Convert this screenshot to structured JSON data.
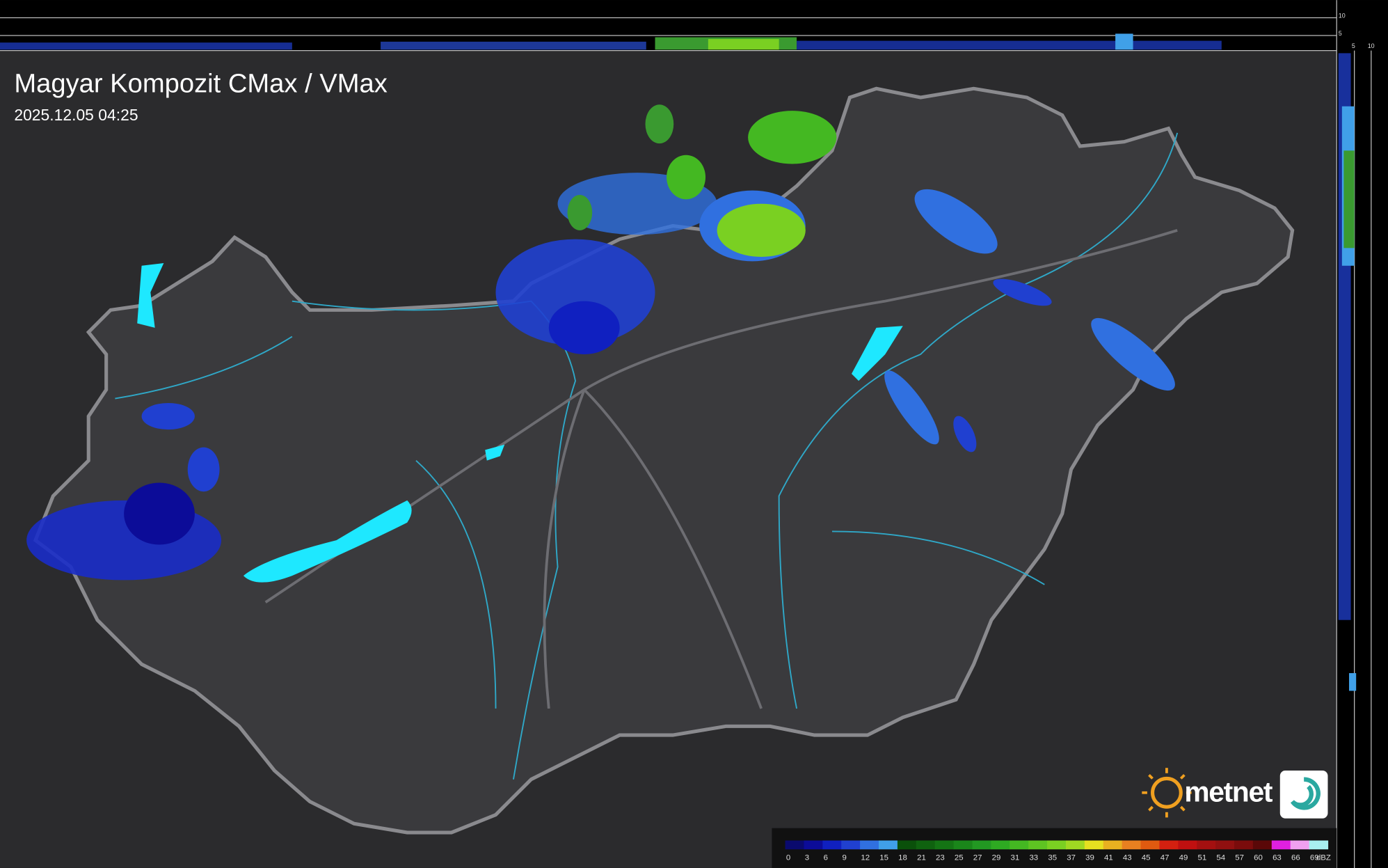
{
  "header": {
    "title": "Magyar Kompozit CMax / VMax",
    "timestamp": "2025.12.05 04:25"
  },
  "profile_axes": {
    "top_ticks": [
      "10",
      "5"
    ],
    "side_ticks": [
      "5",
      "10"
    ]
  },
  "legend": {
    "unit": "dBZ",
    "levels": [
      {
        "value": 0,
        "color": "#0a0a6e"
      },
      {
        "value": 3,
        "color": "#0c0c98"
      },
      {
        "value": 6,
        "color": "#1020c0"
      },
      {
        "value": 9,
        "color": "#2040d0"
      },
      {
        "value": 12,
        "color": "#3070e0"
      },
      {
        "value": 15,
        "color": "#40a0e8"
      },
      {
        "value": 18,
        "color": "#0a500a"
      },
      {
        "value": 21,
        "color": "#0f620f"
      },
      {
        "value": 23,
        "color": "#147414"
      },
      {
        "value": 25,
        "color": "#1a861a"
      },
      {
        "value": 27,
        "color": "#229822"
      },
      {
        "value": 29,
        "color": "#2eaa22"
      },
      {
        "value": 31,
        "color": "#44b822"
      },
      {
        "value": 33,
        "color": "#5ec422"
      },
      {
        "value": 35,
        "color": "#7ad022"
      },
      {
        "value": 37,
        "color": "#a0d822"
      },
      {
        "value": 39,
        "color": "#e6e020"
      },
      {
        "value": 41,
        "color": "#e8b020"
      },
      {
        "value": 43,
        "color": "#e88020"
      },
      {
        "value": 45,
        "color": "#e05a10"
      },
      {
        "value": 47,
        "color": "#d42010"
      },
      {
        "value": 49,
        "color": "#c01010"
      },
      {
        "value": 51,
        "color": "#a41010"
      },
      {
        "value": 54,
        "color": "#901010"
      },
      {
        "value": 57,
        "color": "#7a0c0c"
      },
      {
        "value": 60,
        "color": "#5a0808"
      },
      {
        "value": 63,
        "color": "#e020e0"
      },
      {
        "value": 66,
        "color": "#f0a0f0"
      },
      {
        "value": 69,
        "color": "#a8f0f0"
      }
    ]
  },
  "logo": {
    "brand": "metnet"
  }
}
